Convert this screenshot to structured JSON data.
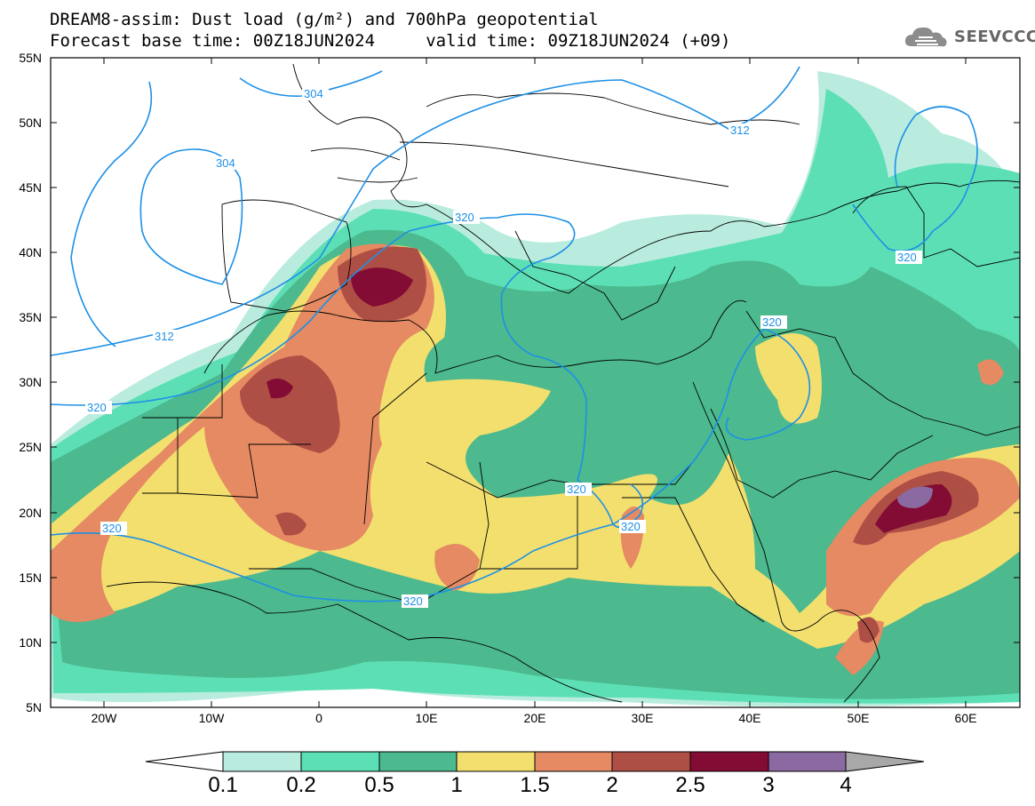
{
  "header": {
    "title_line1": "DREAM8-assim: Dust load (g/m²) and 700hPa geopotential",
    "title_line2": "Forecast base time: 00Z18JUN2024     valid time: 09Z18JUN2024 (+09)",
    "logo_text": "SEEVCCC",
    "logo_icon": "cloud-icon"
  },
  "map": {
    "lon_ticks": [
      "20W",
      "10W",
      "0",
      "10E",
      "20E",
      "30E",
      "40E",
      "50E",
      "60E"
    ],
    "lat_ticks": [
      "55N",
      "50N",
      "45N",
      "40N",
      "35N",
      "30N",
      "25N",
      "20N",
      "15N",
      "10N",
      "5N"
    ],
    "contour_labels": [
      "304",
      "304",
      "312",
      "312",
      "320",
      "320",
      "320",
      "320",
      "320",
      "320",
      "320",
      "320"
    ],
    "background_color": "#ffffff",
    "contour_color": "#1e90e6",
    "boundary_color": "#000000"
  },
  "colorbar": {
    "labels": [
      "0.1",
      "0.2",
      "0.5",
      "1",
      "1.5",
      "2",
      "2.5",
      "3",
      "4"
    ],
    "colors": [
      "#ffffff",
      "#b9ecde",
      "#5ddfb6",
      "#4cb98e",
      "#f2df6e",
      "#e58a62",
      "#ae4f46",
      "#830c35",
      "#8a6aa0",
      "#a8a8a8"
    ]
  }
}
